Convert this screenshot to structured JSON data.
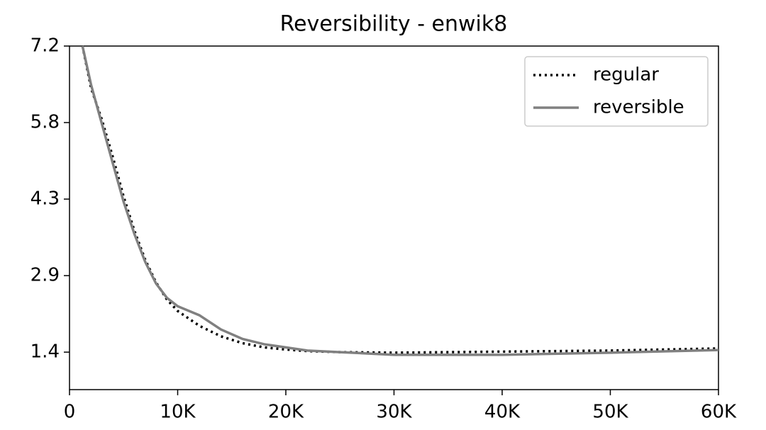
{
  "chart_data": {
    "type": "line",
    "title": "Reversibility - enwik8",
    "x": [
      1200,
      2000,
      3000,
      4000,
      5000,
      6000,
      7000,
      8000,
      9000,
      10000,
      12000,
      14000,
      16000,
      18000,
      20000,
      22000,
      25000,
      30000,
      40000,
      50000,
      60000
    ],
    "series": [
      {
        "name": "regular",
        "color": "#000000",
        "dash": "dotted",
        "values": [
          7.2,
          6.4,
          5.8,
          5.1,
          4.35,
          3.7,
          3.15,
          2.72,
          2.4,
          2.18,
          1.9,
          1.7,
          1.57,
          1.49,
          1.45,
          1.42,
          1.4,
          1.39,
          1.41,
          1.43,
          1.47
        ]
      },
      {
        "name": "reversible",
        "color": "#808080",
        "dash": "solid",
        "values": [
          7.2,
          6.46,
          5.72,
          4.98,
          4.25,
          3.64,
          3.11,
          2.7,
          2.43,
          2.27,
          2.1,
          1.83,
          1.65,
          1.55,
          1.49,
          1.43,
          1.4,
          1.35,
          1.35,
          1.39,
          1.44
        ]
      }
    ],
    "xlim": [
      0,
      60000
    ],
    "xticks": [
      0,
      {
        "value": 10000,
        "label": "10K"
      },
      {
        "value": 20000,
        "label": "20K"
      },
      {
        "value": 30000,
        "label": "30K"
      },
      {
        "value": 40000,
        "label": "40K"
      },
      {
        "value": 50000,
        "label": "50K"
      },
      {
        "value": 60000,
        "label": "60K"
      }
    ],
    "ylim": [
      0.69,
      7.2
    ],
    "yticks": [
      1.4,
      {
        "value": 2.85,
        "label": "2.9"
      },
      4.3,
      {
        "value": 5.75,
        "label": "5.8"
      },
      7.2
    ],
    "grid": false,
    "legend": "upper right"
  }
}
